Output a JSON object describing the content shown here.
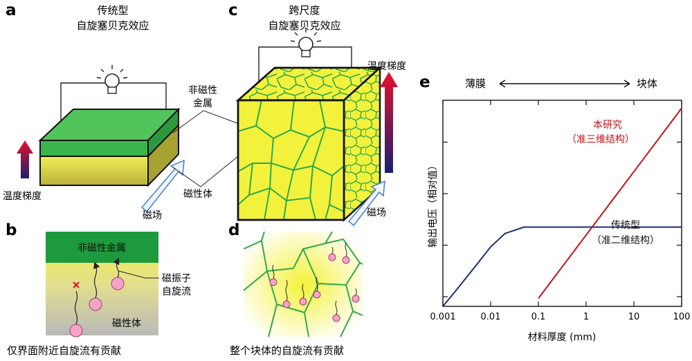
{
  "panels": {
    "a": {
      "letter": "a",
      "title_line1": "传统型",
      "title_line2": "自旋塞贝克效应",
      "temp_label": "温度梯度",
      "field_label": "磁场",
      "label_nonmagnetic_1": "非磁性",
      "label_nonmagnetic_2": "金属",
      "label_magnet": "磁性体"
    },
    "b": {
      "letter": "b",
      "top_layer": "非磁性金属",
      "bottom_layer": "磁性体",
      "magnon_1": "磁振子",
      "magnon_2": "自旋流",
      "caption": "仅界面附近自旋流有贡献"
    },
    "c": {
      "letter": "c",
      "title_line1": "跨尺度",
      "title_line2": "自旋塞贝克效应",
      "temp_label": "温度梯度",
      "field_label": "磁场"
    },
    "d": {
      "letter": "d",
      "caption": "整个块体的自旋流有贡献"
    },
    "e": {
      "letter": "e",
      "left_label": "薄膜",
      "right_label": "块体",
      "ylabel": "输出电压（相对值）",
      "xlabel": "材料厚度 (mm)",
      "series_red_1": "本研究",
      "series_red_2": "（准三维结构）",
      "series_blue_1": "传统型",
      "series_blue_2": "（准二维结构）"
    }
  },
  "colors": {
    "green": "#2fa84a",
    "yellow": "#f2f23c",
    "red_line": "#c0121a",
    "blue_line": "#1a2f6b"
  },
  "chart_data": {
    "type": "line",
    "xlabel": "材料厚度 (mm)",
    "ylabel": "输出电压（相对值）",
    "x_scale": "log",
    "xlim": [
      0.001,
      100
    ],
    "x_ticks": [
      "0.001",
      "0.01",
      "0.1",
      "1",
      "10",
      "100"
    ],
    "series": [
      {
        "name": "传统型（准二维结构）",
        "color": "#1a2f6b",
        "x": [
          0.001,
          0.002,
          0.005,
          0.01,
          0.02,
          0.05,
          0.1,
          1,
          10,
          100
        ],
        "y": [
          0.0,
          0.22,
          0.52,
          0.75,
          0.92,
          1.0,
          1.0,
          1.0,
          1.0,
          1.0
        ]
      },
      {
        "name": "本研究（准三维结构）",
        "color": "#c0121a",
        "x": [
          0.1,
          1,
          10,
          100
        ],
        "y": [
          0.1,
          0.9,
          1.7,
          2.5
        ]
      }
    ]
  }
}
